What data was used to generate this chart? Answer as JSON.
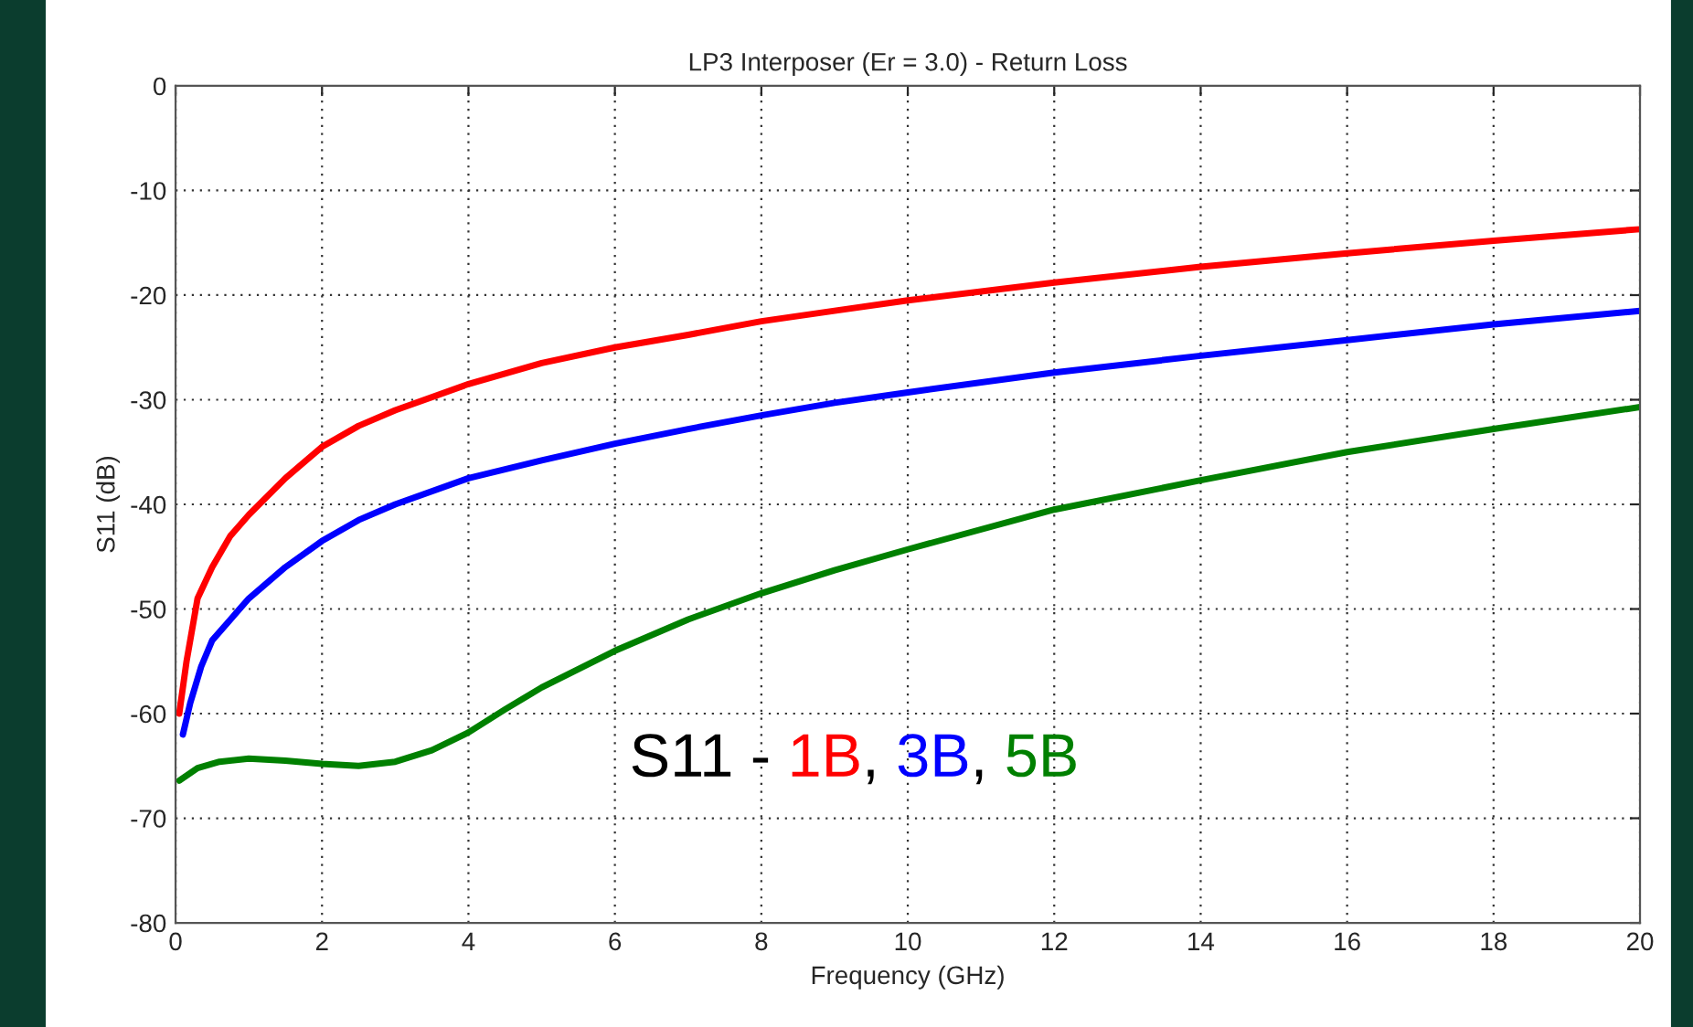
{
  "chart_data": {
    "type": "line",
    "title": "LP3 Interposer (Er = 3.0) - Return Loss",
    "xlabel": "Frequency (GHz)",
    "ylabel": "S11 (dB)",
    "annotations": [
      "S11 -",
      ",",
      ","
    ],
    "xlim": [
      0,
      20
    ],
    "ylim": [
      -80,
      0
    ],
    "xticks": [
      0,
      2,
      4,
      6,
      8,
      10,
      12,
      14,
      16,
      18,
      20
    ],
    "yticks": [
      -80,
      -70,
      -60,
      -50,
      -40,
      -30,
      -20,
      -10,
      0
    ],
    "grid": true,
    "legend": false,
    "marker": "none",
    "line_style": "solid",
    "series": [
      {
        "name": "1B",
        "color": "#ff0000",
        "x": [
          0.05,
          0.15,
          0.3,
          0.5,
          0.75,
          1,
          1.5,
          2,
          2.5,
          3,
          4,
          5,
          6,
          7,
          8,
          9,
          10,
          12,
          14,
          16,
          18,
          20
        ],
        "values": [
          -60,
          -55,
          -49,
          -46,
          -43,
          -41,
          -37.5,
          -34.5,
          -32.5,
          -31,
          -28.5,
          -26.5,
          -25,
          -23.8,
          -22.5,
          -21.5,
          -20.5,
          -18.8,
          -17.3,
          -16,
          -14.8,
          -13.7
        ]
      },
      {
        "name": "3B",
        "color": "#0000ff",
        "x": [
          0.1,
          0.2,
          0.35,
          0.5,
          0.75,
          1,
          1.5,
          2,
          2.5,
          3,
          4,
          5,
          6,
          7,
          8,
          9,
          10,
          12,
          14,
          16,
          18,
          20
        ],
        "values": [
          -62,
          -59,
          -55.5,
          -53,
          -51,
          -49,
          -46,
          -43.5,
          -41.5,
          -40,
          -37.5,
          -35.8,
          -34.2,
          -32.8,
          -31.5,
          -30.3,
          -29.3,
          -27.4,
          -25.8,
          -24.3,
          -22.8,
          -21.5
        ]
      },
      {
        "name": "5B",
        "color": "#008000",
        "x": [
          0.05,
          0.3,
          0.6,
          1,
          1.5,
          2,
          2.5,
          3,
          3.5,
          4,
          4.5,
          5,
          6,
          7,
          8,
          9,
          10,
          12,
          14,
          16,
          18,
          20
        ],
        "values": [
          -66.4,
          -65.2,
          -64.6,
          -64.3,
          -64.5,
          -64.8,
          -65,
          -64.6,
          -63.5,
          -61.8,
          -59.6,
          -57.5,
          -54,
          -51,
          -48.5,
          -46.3,
          -44.3,
          -40.5,
          -37.7,
          -35,
          -32.8,
          -30.7
        ]
      }
    ]
  }
}
